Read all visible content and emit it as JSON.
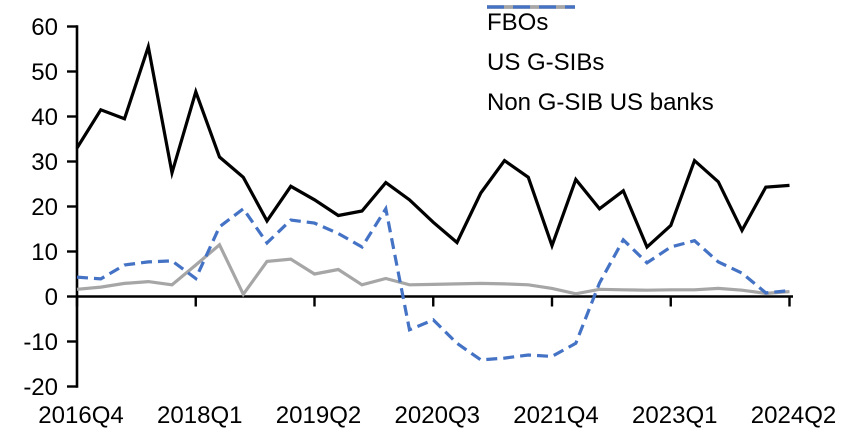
{
  "chart_data": {
    "type": "line",
    "title": "",
    "xlabel": "",
    "ylabel": "",
    "x_period": "quarterly",
    "x_range": [
      "2016Q4",
      "2024Q2"
    ],
    "n_points": 31,
    "x_tick_labels": [
      "2016Q4",
      "2018Q1",
      "2019Q2",
      "2020Q3",
      "2021Q4",
      "2023Q1",
      "2024Q2"
    ],
    "x_tick_indices": [
      0,
      5,
      10,
      15,
      20,
      25,
      30
    ],
    "y_ticks": [
      60,
      50,
      40,
      30,
      20,
      10,
      0,
      -10,
      -20
    ],
    "ylim": [
      -20,
      60
    ],
    "grid": false,
    "legend_position": "top-right",
    "axis_color": "#000000",
    "background_color": "#ffffff",
    "series": [
      {
        "name": "FBOs",
        "color": "#000000",
        "style": "solid",
        "values": [
          33,
          41.5,
          39.5,
          55.5,
          27.5,
          45.5,
          31,
          26.5,
          16.8,
          24.5,
          21.5,
          18,
          19,
          25.3,
          21.5,
          16.5,
          12,
          23,
          30.2,
          26.5,
          11.3,
          26,
          19.5,
          23.5,
          11,
          15.8,
          30.2,
          25.5,
          14.7,
          24.3,
          24.7
        ]
      },
      {
        "name": "US G-SIBs",
        "color": "#a6a6a6",
        "style": "solid",
        "values": [
          1.6,
          2.1,
          2.9,
          3.3,
          2.6,
          7,
          11.5,
          0.5,
          7.8,
          8.3,
          5,
          6,
          2.6,
          4,
          2.6,
          2.7,
          2.8,
          2.9,
          2.8,
          2.6,
          1.8,
          0.6,
          1.6,
          1.5,
          1.4,
          1.5,
          1.5,
          1.8,
          1.4,
          0.7,
          1.1
        ]
      },
      {
        "name": "Non G-SIB US banks",
        "color": "#4472c4",
        "style": "dashed",
        "values": [
          4.3,
          3.9,
          7,
          7.7,
          7.9,
          4,
          15.5,
          19.5,
          11.9,
          17,
          16.3,
          14,
          11,
          19.5,
          -7.4,
          -5.2,
          -10.4,
          -14.1,
          -13.7,
          -13,
          -13.3,
          -10.4,
          3,
          12.6,
          7.5,
          11,
          12.4,
          7.7,
          5.2,
          0.8,
          1.3
        ]
      }
    ]
  }
}
